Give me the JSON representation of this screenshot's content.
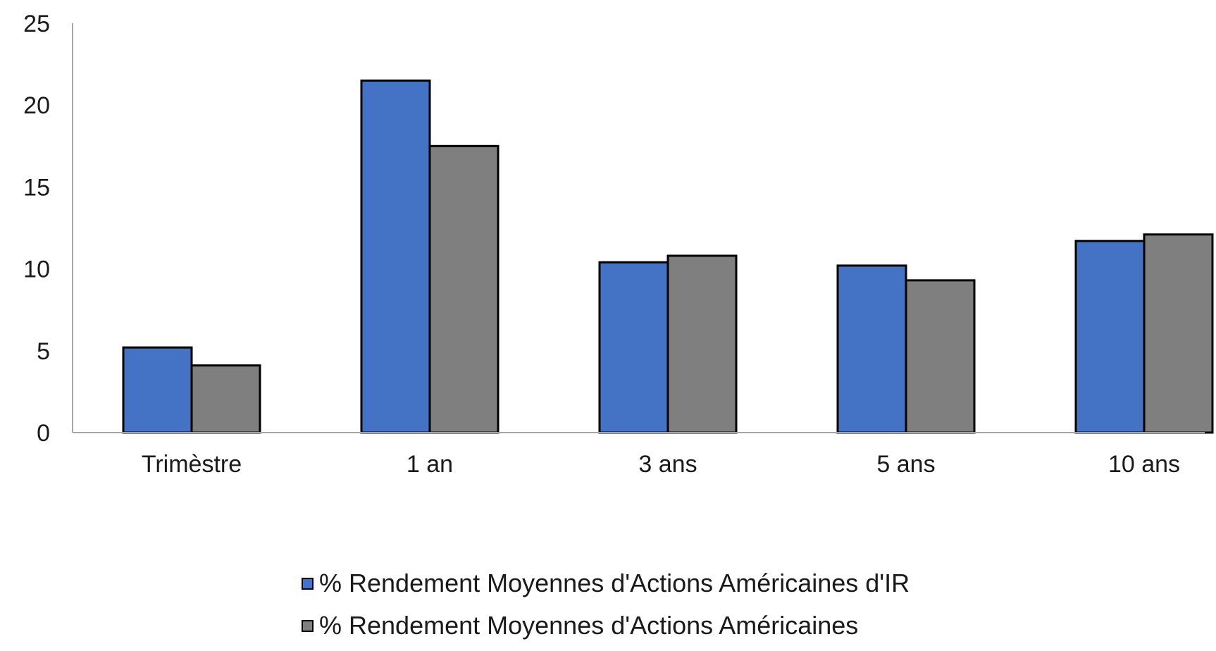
{
  "chart_data": {
    "type": "bar",
    "categories": [
      "Trimèstre",
      "1 an",
      "3 ans",
      "5 ans",
      "10 ans"
    ],
    "series": [
      {
        "name": "% Rendement Moyennes d'Actions Américaines d'IR",
        "color": "#4472C4",
        "values": [
          5.2,
          21.5,
          10.4,
          10.2,
          11.7
        ]
      },
      {
        "name": "% Rendement Moyennes d'Actions Américaines",
        "color": "#7F7F7F",
        "values": [
          4.1,
          17.5,
          10.8,
          9.3,
          12.1
        ]
      }
    ],
    "y_ticks": [
      0,
      5,
      10,
      15,
      20,
      25
    ],
    "ylim": [
      0,
      25
    ],
    "title": "",
    "xlabel": "",
    "ylabel": "",
    "grid": false,
    "legend_position": "bottom"
  }
}
